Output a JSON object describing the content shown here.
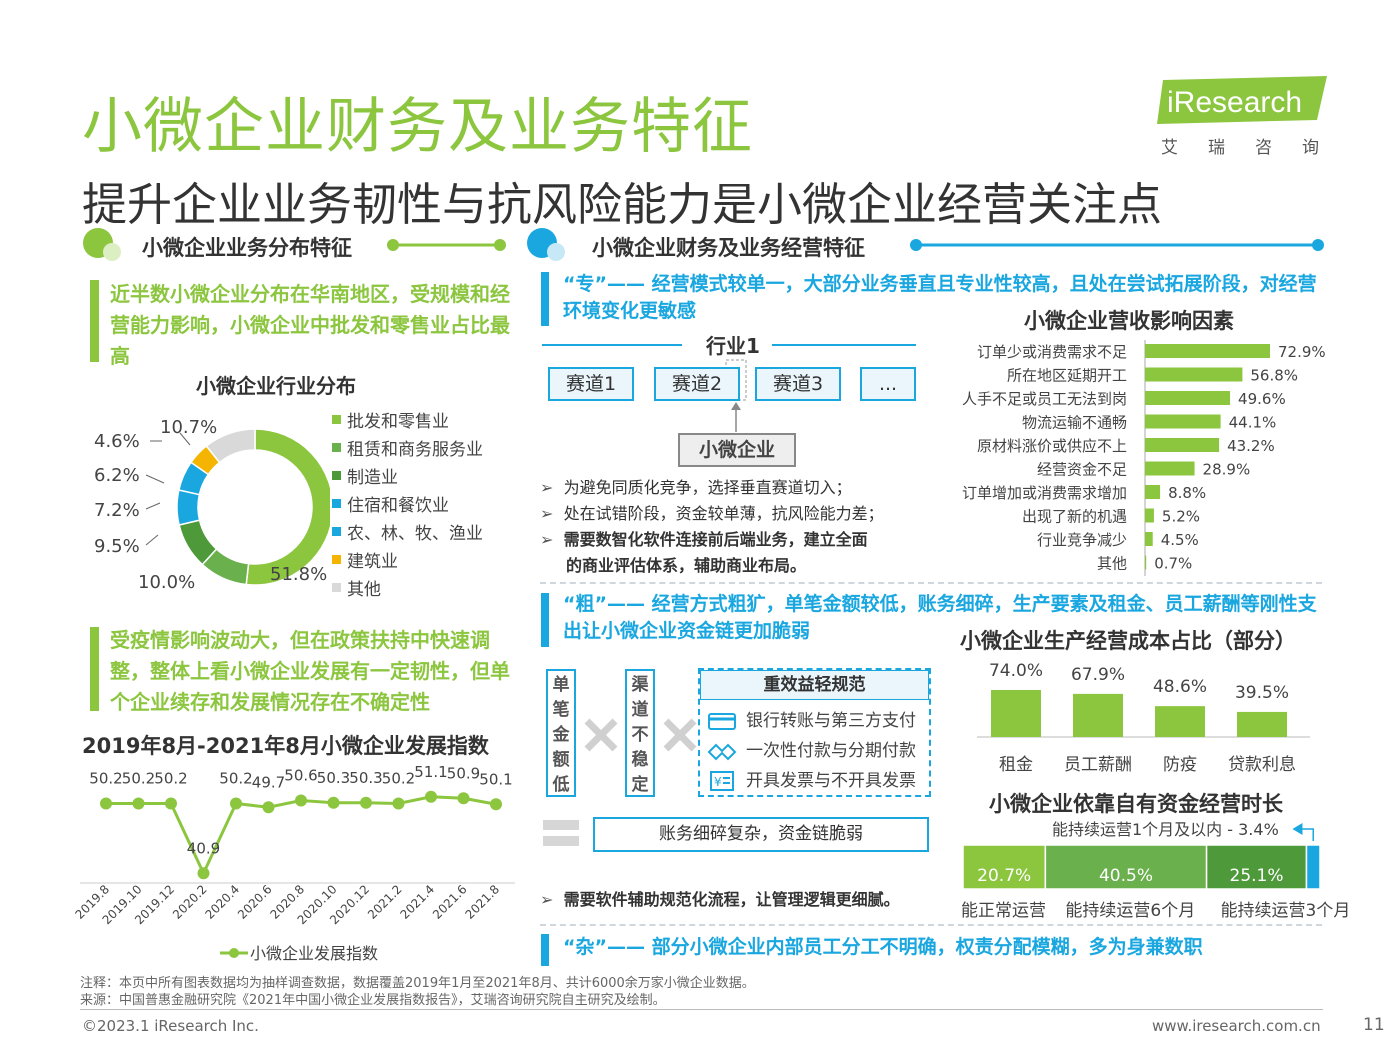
{
  "page": {
    "title": "小微企业财务及业务特征",
    "subtitle": "提升企业业务韧性与抗风险能力是小微企业经营关注点",
    "logo": {
      "brand": "iResearch",
      "sub": "艾瑞咨询"
    },
    "page_number": "11",
    "copyright": "©2023.1 iResearch Inc.",
    "website": "www.iresearch.com.cn",
    "note": "注释：本页中所有图表数据均为抽样调查数据，数据覆盖2019年1月至2021年8月、共计6000余万家小微企业数据。",
    "source": "来源：中国普惠金融研究院《2021年中国小微企业发展指数报告》，艾瑞咨询研究院自主研究及绘制。",
    "colors": {
      "green": "#8cc63f",
      "blue": "#1aa7e0",
      "dark_green": "#5aa02c"
    }
  },
  "left": {
    "section_title": "小微企业业务分布特征",
    "note1": "近半数小微企业分布在华南地区，受规模和经营能力影响，小微企业中批发和零售业占比最高",
    "note2": "受疫情影响波动大，但在政策扶持中快速调整，整体上看小微企业发展有一定韧性，但单个企业续存和发展情况存在不确定性"
  },
  "right": {
    "section_title": "小微企业财务及业务经营特征",
    "zhuan": "“专”—— 经营模式较单一，大部分业务垂直且专业性较高，且处在尝试拓展阶段，对经营环境变化更敏感",
    "cu": "“粗”—— 经营方式粗犷，单笔金额较低，账务细碎，生产要素及租金、员工薪酬等刚性支出让小微企业资金链更加脆弱",
    "za": "“杂”—— 部分小微企业内部员工分工不明确，权责分配模糊，多为身兼数职",
    "industry": {
      "label": "行业1",
      "tracks": [
        "赛道1",
        "赛道2",
        "赛道3",
        "..."
      ],
      "enterprise": "小微企业"
    },
    "bullets1": [
      "为避免同质化竞争，选择垂直赛道切入；",
      "处在试错阶段，资金较单薄，抗风险能力差；",
      "需要数智化软件连接前后端业务，建立全面",
      "的商业评估体系，辅助商业布局。"
    ],
    "cu_diagram": {
      "box1": "单笔金额低",
      "box2": "渠道不稳定",
      "box3_title": "重效益轻规范",
      "box3_items": [
        "银行转账与第三方支付",
        "一次性付款与分期付款",
        "开具发票与不开具发票"
      ],
      "bottom": "账务细碎复杂，资金链脆弱"
    },
    "bullet2": "需要软件辅助规范化流程，让管理逻辑更细腻。"
  },
  "chart_data": [
    {
      "type": "pie",
      "title": "小微企业行业分布",
      "categories": [
        "批发和零售业",
        "租赁和商务服务业",
        "制造业",
        "住宿和餐饮业",
        "农、林、牧、渔业",
        "建筑业",
        "其他"
      ],
      "values": [
        51.8,
        10.0,
        9.5,
        7.2,
        6.2,
        4.6,
        10.7
      ],
      "labels": [
        "51.8%",
        "10.0%",
        "9.5%",
        "7.2%",
        "6.2%",
        "4.6%",
        "10.7%"
      ],
      "colors": [
        "#8cc63f",
        "#6ab04c",
        "#4e9a3a",
        "#1aa7e0",
        "#1aa7e0",
        "#f5b400",
        "#d9d9d9"
      ],
      "legend": "right"
    },
    {
      "type": "line",
      "title": "2019年8月-2021年8月小微企业发展指数",
      "x": [
        "2019.8",
        "2019.10",
        "2019.12",
        "2020.2",
        "2020.4",
        "2020.6",
        "2020.8",
        "2020.10",
        "2020.12",
        "2021.2",
        "2021.4",
        "2021.6",
        "2021.8"
      ],
      "series": [
        {
          "name": "小微企业发展指数",
          "values": [
            50.2,
            50.2,
            50.2,
            40.9,
            50.2,
            49.7,
            50.6,
            50.3,
            50.3,
            50.2,
            51.1,
            50.9,
            50.1
          ]
        }
      ],
      "legend": "bottom"
    },
    {
      "type": "bar",
      "orientation": "horizontal",
      "title": "小微企业营收影响因素",
      "categories": [
        "订单少或消费需求不足",
        "所在地区延期开工",
        "人手不足或员工无法到岗",
        "物流运输不通畅",
        "原材料涨价或供应不上",
        "经营资金不足",
        "订单增加或消费需求增加",
        "出现了新的机遇",
        "行业竞争减少",
        "其他"
      ],
      "values": [
        72.9,
        56.8,
        49.6,
        44.1,
        43.2,
        28.9,
        8.8,
        5.2,
        4.5,
        0.7
      ],
      "labels": [
        "72.9%",
        "56.8%",
        "49.6%",
        "44.1%",
        "43.2%",
        "28.9%",
        "8.8%",
        "5.2%",
        "4.5%",
        "0.7%"
      ]
    },
    {
      "type": "bar",
      "title": "小微企业生产经营成本占比（部分）",
      "categories": [
        "租金",
        "员工薪酬",
        "防疫",
        "贷款利息"
      ],
      "values": [
        74.0,
        67.9,
        48.6,
        39.5
      ],
      "labels": [
        "74.0%",
        "67.9%",
        "48.6%",
        "39.5%"
      ]
    },
    {
      "type": "bar",
      "orientation": "stacked-horizontal",
      "title": "小微企业依靠自有资金经营时长",
      "categories": [
        "能正常运营",
        "能持续运营6个月",
        "能持续运营3个月",
        "能持续运营1个月及以内"
      ],
      "values": [
        20.7,
        40.5,
        25.1,
        3.4
      ],
      "labels": [
        "20.7%",
        "40.5%",
        "25.1%",
        "能持续运营1个月及以内 - 3.4%"
      ]
    }
  ]
}
